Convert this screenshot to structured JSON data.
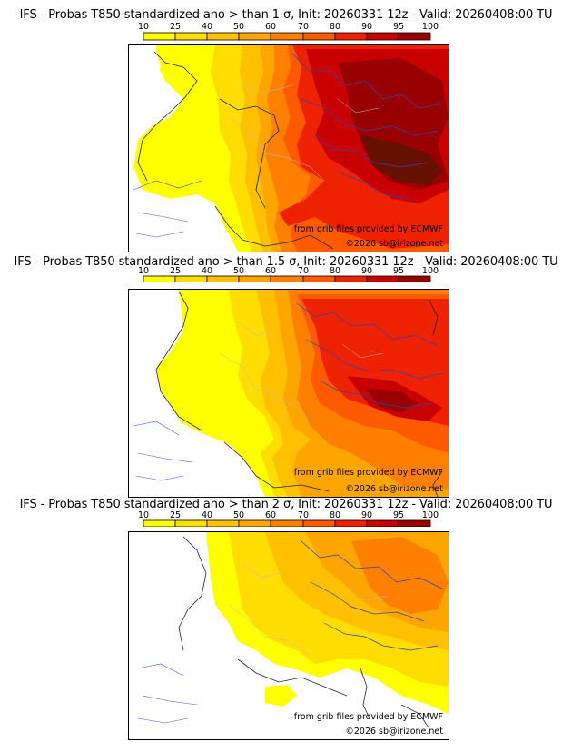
{
  "scale": {
    "labels": [
      "10",
      "25",
      "40",
      "50",
      "60",
      "70",
      "80",
      "90",
      "95",
      "100"
    ],
    "colors": [
      "#ffff00",
      "#ffdd00",
      "#ffc000",
      "#ffa500",
      "#ff8000",
      "#ff5a00",
      "#ee2200",
      "#c80000",
      "#990000",
      "#661100"
    ]
  },
  "panels": [
    {
      "title": "IFS - Probas T850  standardized ano > than 1 σ, Init: 20260331 12z - Valid: 20260408:00 TU",
      "source_credit": "from grib files provided by ECMWF",
      "copyright": "©2026 sb@irizone.net"
    },
    {
      "title": "IFS - Probas T850  standardized ano > than 1.5 σ, Init: 20260331 12z - Valid: 20260408:00 TU",
      "source_credit": "from grib files provided by ECMWF",
      "copyright": "©2026 sb@irizone.net"
    },
    {
      "title": "IFS - Probas T850  standardized ano > than 2 σ, Init: 20260331 12z - Valid: 20260408:00 TU",
      "source_credit": "from grib files provided by ECMWF",
      "copyright": "©2026 sb@irizone.net"
    }
  ]
}
